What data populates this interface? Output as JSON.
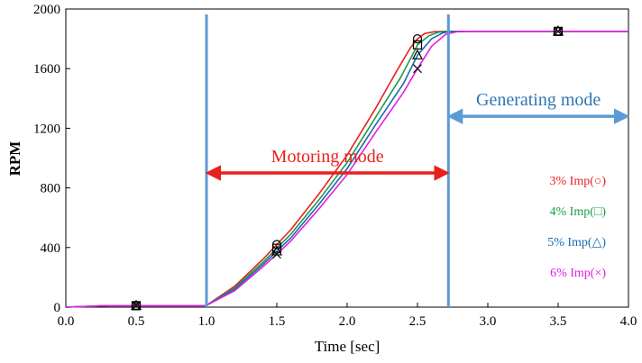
{
  "chart_data": {
    "type": "line",
    "xlabel": "Time [sec]",
    "ylabel": "RPM",
    "xlim": [
      0.0,
      4.0
    ],
    "ylim": [
      0,
      2000
    ],
    "x_ticks": [
      "0.0",
      "0.5",
      "1.0",
      "1.5",
      "2.0",
      "2.5",
      "3.0",
      "3.5",
      "4.0"
    ],
    "y_ticks": [
      "0",
      "400",
      "800",
      "1200",
      "1600",
      "2000"
    ],
    "grid": false,
    "legend_position": "right",
    "series": [
      {
        "name": "3% Imp(○)",
        "color": "#e8201e",
        "marker": "circle",
        "x": [
          0.0,
          0.3,
          0.99,
          1.0,
          1.2,
          1.4,
          1.5,
          1.6,
          1.8,
          2.0,
          2.2,
          2.35,
          2.45,
          2.5,
          2.55,
          2.62,
          2.7,
          2.75,
          4.0
        ],
        "y": [
          0,
          10,
          10,
          12,
          140,
          320,
          420,
          520,
          760,
          1020,
          1330,
          1580,
          1740,
          1800,
          1835,
          1848,
          1850,
          1850,
          1850
        ]
      },
      {
        "name": "4% Imp(□)",
        "color": "#1f9a4a",
        "marker": "square",
        "x": [
          0.0,
          0.3,
          0.99,
          1.0,
          1.2,
          1.4,
          1.5,
          1.6,
          1.8,
          2.0,
          2.2,
          2.38,
          2.48,
          2.5,
          2.58,
          2.65,
          2.72,
          2.75,
          4.0
        ],
        "y": [
          0,
          10,
          10,
          12,
          130,
          300,
          395,
          490,
          720,
          970,
          1270,
          1540,
          1720,
          1760,
          1820,
          1845,
          1850,
          1850,
          1850
        ]
      },
      {
        "name": "5% Imp(△)",
        "color": "#1a6bb0",
        "marker": "triangle",
        "x": [
          0.0,
          0.3,
          0.99,
          1.0,
          1.2,
          1.4,
          1.5,
          1.6,
          1.8,
          2.0,
          2.2,
          2.4,
          2.5,
          2.6,
          2.68,
          2.74,
          2.78,
          4.0
        ],
        "y": [
          0,
          10,
          10,
          12,
          120,
          285,
          375,
          465,
          690,
          930,
          1220,
          1500,
          1690,
          1800,
          1840,
          1850,
          1850,
          1850
        ]
      },
      {
        "name": "6% Imp(×)",
        "color": "#e020e0",
        "marker": "x",
        "x": [
          0.0,
          0.3,
          0.99,
          1.0,
          1.2,
          1.4,
          1.5,
          1.6,
          1.8,
          2.0,
          2.2,
          2.4,
          2.5,
          2.6,
          2.7,
          2.78,
          2.85,
          4.0
        ],
        "y": [
          0,
          10,
          10,
          12,
          110,
          270,
          355,
          445,
          660,
          890,
          1170,
          1440,
          1600,
          1750,
          1830,
          1848,
          1850,
          1850
        ]
      }
    ],
    "marker_points": [
      {
        "x": 0.5,
        "y": 10,
        "marker": "all"
      },
      {
        "x": 1.5,
        "values": [
          420,
          395,
          375,
          355
        ]
      },
      {
        "x": 2.5,
        "values": [
          1800,
          1760,
          1690,
          1600
        ]
      },
      {
        "x": 3.5,
        "y": 1850,
        "marker": "all"
      }
    ],
    "vertical_lines": [
      {
        "x": 1.0,
        "color": "#5b9bd5"
      },
      {
        "x": 2.72,
        "color": "#5b9bd5"
      }
    ],
    "annotations": [
      {
        "text": "Motoring mode",
        "color": "#e8201e",
        "x_from": 1.0,
        "x_to": 2.72,
        "y": 900
      },
      {
        "text": "Generating mode",
        "color": "#2e75b6",
        "x_from": 2.72,
        "x_to": 4.0,
        "y": 1280
      }
    ]
  }
}
